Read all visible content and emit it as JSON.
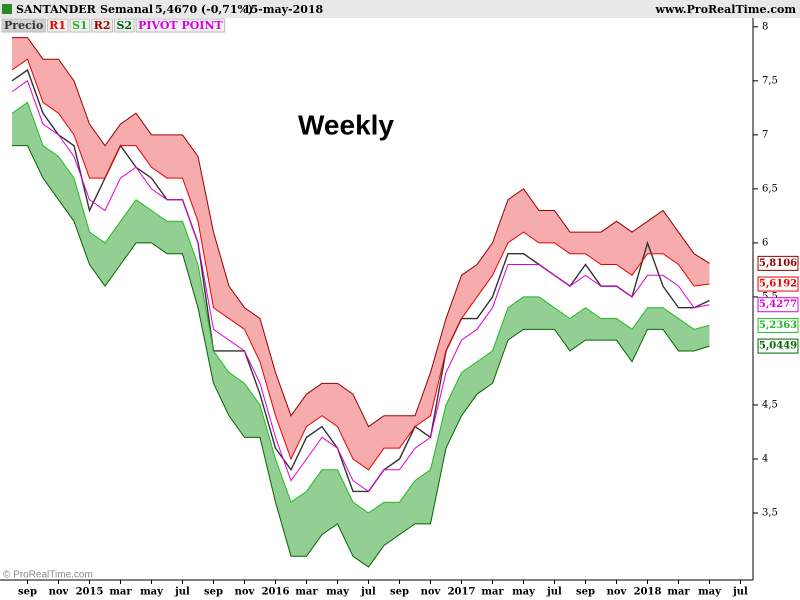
{
  "chart_data": {
    "type": "line",
    "header": {
      "symbol": "SANTANDER",
      "period": "Semanal",
      "quote": "5,4670 (-0,71%)",
      "date": "15-may-2018",
      "site": "www.ProRealTime.com"
    },
    "annotation": "Weekly",
    "watermark": "© ProRealTime.com",
    "categories": [
      null,
      "sep",
      null,
      "nov",
      null,
      "2015",
      null,
      "mar",
      null,
      "may",
      null,
      "jul",
      null,
      "sep",
      null,
      "nov",
      null,
      "2016",
      null,
      "mar",
      null,
      "may",
      null,
      "jul",
      null,
      "sep",
      null,
      "nov",
      null,
      "2017",
      null,
      "mar",
      null,
      "may",
      null,
      "jul",
      null,
      "sep",
      null,
      "nov",
      null,
      "2018",
      null,
      "mar",
      null,
      "may",
      null,
      "jul"
    ],
    "ylim": [
      2.88,
      8.1
    ],
    "yticks": [
      {
        "value": 3.5,
        "label": "3,5"
      },
      4,
      {
        "value": 4.5,
        "label": "4,5"
      },
      {
        "value": 5.5,
        "label": "5,5"
      },
      6,
      {
        "value": 6.5,
        "label": "6,5"
      },
      7,
      {
        "value": 7.5,
        "label": "7,5"
      },
      8
    ],
    "grid": false,
    "series": [
      {
        "name": "Precio",
        "color": "#333333",
        "values": [
          7.5,
          7.6,
          7.2,
          7.0,
          6.9,
          6.3,
          6.6,
          6.9,
          6.7,
          6.6,
          6.4,
          6.4,
          6.0,
          5.0,
          5.0,
          5.0,
          4.6,
          4.1,
          3.9,
          4.2,
          4.3,
          4.1,
          3.7,
          3.7,
          3.9,
          4.0,
          4.3,
          4.2,
          5.0,
          5.3,
          5.3,
          5.5,
          5.9,
          5.9,
          5.8,
          5.7,
          5.6,
          5.8,
          5.6,
          5.6,
          5.5,
          6.0,
          5.6,
          5.4,
          5.4,
          5.467,
          null,
          null
        ]
      },
      {
        "name": "R1",
        "color": "#ee0000",
        "values": [
          7.6,
          7.7,
          7.3,
          7.2,
          7.0,
          6.6,
          6.6,
          6.9,
          6.9,
          6.7,
          6.6,
          6.6,
          6.2,
          5.4,
          5.3,
          5.2,
          4.9,
          4.4,
          4.0,
          4.3,
          4.4,
          4.3,
          4.0,
          3.9,
          4.1,
          4.1,
          4.3,
          4.4,
          5.0,
          5.3,
          5.5,
          5.7,
          6.0,
          6.1,
          6.0,
          6.0,
          5.9,
          5.9,
          5.8,
          5.8,
          5.7,
          5.9,
          5.9,
          5.8,
          5.6,
          5.6192,
          null,
          null
        ],
        "value_labels": [
          null,
          null,
          null,
          null,
          null,
          null,
          null,
          null,
          null,
          null,
          null,
          null,
          null,
          null,
          null,
          null,
          null,
          null,
          null,
          null,
          null,
          null,
          null,
          null,
          null,
          null,
          null,
          null,
          null,
          null,
          null,
          null,
          null,
          null,
          null,
          null,
          null,
          null,
          null,
          null,
          null,
          null,
          null,
          null,
          null,
          "5,6192",
          null,
          null
        ]
      },
      {
        "name": "S1",
        "color": "#22bb22",
        "values": [
          7.2,
          7.3,
          6.9,
          6.8,
          6.6,
          6.1,
          6.0,
          6.2,
          6.4,
          6.3,
          6.2,
          6.2,
          5.8,
          5.0,
          4.8,
          4.7,
          4.5,
          4.0,
          3.6,
          3.7,
          3.9,
          3.9,
          3.6,
          3.5,
          3.6,
          3.6,
          3.8,
          3.9,
          4.5,
          4.8,
          4.9,
          5.0,
          5.4,
          5.5,
          5.5,
          5.4,
          5.3,
          5.4,
          5.3,
          5.3,
          5.2,
          5.4,
          5.4,
          5.3,
          5.2,
          5.2363,
          null,
          null
        ],
        "value_labels": [
          null,
          null,
          null,
          null,
          null,
          null,
          null,
          null,
          null,
          null,
          null,
          null,
          null,
          null,
          null,
          null,
          null,
          null,
          null,
          null,
          null,
          null,
          null,
          null,
          null,
          null,
          null,
          null,
          null,
          null,
          null,
          null,
          null,
          null,
          null,
          null,
          null,
          null,
          null,
          null,
          null,
          null,
          null,
          null,
          null,
          "5,2363",
          null,
          null
        ]
      },
      {
        "name": "R2",
        "color": "#990000",
        "values": [
          7.9,
          7.9,
          7.7,
          7.7,
          7.5,
          7.1,
          6.9,
          7.1,
          7.2,
          7.0,
          7.0,
          7.0,
          6.8,
          6.1,
          5.6,
          5.4,
          5.3,
          4.8,
          4.4,
          4.6,
          4.7,
          4.7,
          4.6,
          4.3,
          4.4,
          4.4,
          4.4,
          4.8,
          5.3,
          5.7,
          5.8,
          6.0,
          6.4,
          6.5,
          6.3,
          6.3,
          6.1,
          6.1,
          6.1,
          6.2,
          6.1,
          6.2,
          6.3,
          6.1,
          5.9,
          5.8106,
          null,
          null
        ],
        "value_labels": [
          null,
          null,
          null,
          null,
          null,
          null,
          null,
          null,
          null,
          null,
          null,
          null,
          null,
          null,
          null,
          null,
          null,
          null,
          null,
          null,
          null,
          null,
          null,
          null,
          null,
          null,
          null,
          null,
          null,
          null,
          null,
          null,
          null,
          null,
          null,
          null,
          null,
          null,
          null,
          null,
          null,
          null,
          null,
          null,
          null,
          "5,8106",
          null,
          null
        ]
      },
      {
        "name": "S2",
        "color": "#006600",
        "values": [
          6.9,
          6.9,
          6.6,
          6.4,
          6.2,
          5.8,
          5.6,
          5.8,
          6.0,
          6.0,
          5.9,
          5.9,
          5.4,
          4.7,
          4.4,
          4.2,
          4.2,
          3.6,
          3.1,
          3.1,
          3.3,
          3.4,
          3.1,
          3.0,
          3.2,
          3.3,
          3.4,
          3.4,
          4.1,
          4.4,
          4.6,
          4.7,
          5.1,
          5.2,
          5.2,
          5.2,
          5.0,
          5.1,
          5.1,
          5.1,
          4.9,
          5.2,
          5.2,
          5.0,
          5.0,
          5.0449,
          null,
          null
        ],
        "value_labels": [
          null,
          null,
          null,
          null,
          null,
          null,
          null,
          null,
          null,
          null,
          null,
          null,
          null,
          null,
          null,
          null,
          null,
          null,
          null,
          null,
          null,
          null,
          null,
          null,
          null,
          null,
          null,
          null,
          null,
          null,
          null,
          null,
          null,
          null,
          null,
          null,
          null,
          null,
          null,
          null,
          null,
          null,
          null,
          null,
          null,
          "5,0449",
          null,
          null
        ]
      },
      {
        "name": "PIVOT POINT",
        "color": "#dd00dd",
        "values": [
          7.4,
          7.5,
          7.1,
          7.0,
          6.8,
          6.4,
          6.3,
          6.6,
          6.7,
          6.5,
          6.4,
          6.4,
          6.0,
          5.2,
          5.1,
          5.0,
          4.7,
          4.2,
          3.8,
          4.0,
          4.2,
          4.1,
          3.8,
          3.7,
          3.9,
          3.9,
          4.1,
          4.2,
          4.8,
          5.1,
          5.2,
          5.4,
          5.8,
          5.8,
          5.8,
          5.7,
          5.6,
          5.7,
          5.6,
          5.6,
          5.5,
          5.7,
          5.7,
          5.6,
          5.4,
          5.4277,
          null,
          null
        ],
        "value_labels": [
          null,
          null,
          null,
          null,
          null,
          null,
          null,
          null,
          null,
          null,
          null,
          null,
          null,
          null,
          null,
          null,
          null,
          null,
          null,
          null,
          null,
          null,
          null,
          null,
          null,
          null,
          null,
          null,
          null,
          null,
          null,
          null,
          null,
          null,
          null,
          null,
          null,
          null,
          null,
          null,
          null,
          null,
          null,
          null,
          null,
          "5,4277",
          null,
          null
        ]
      }
    ]
  }
}
